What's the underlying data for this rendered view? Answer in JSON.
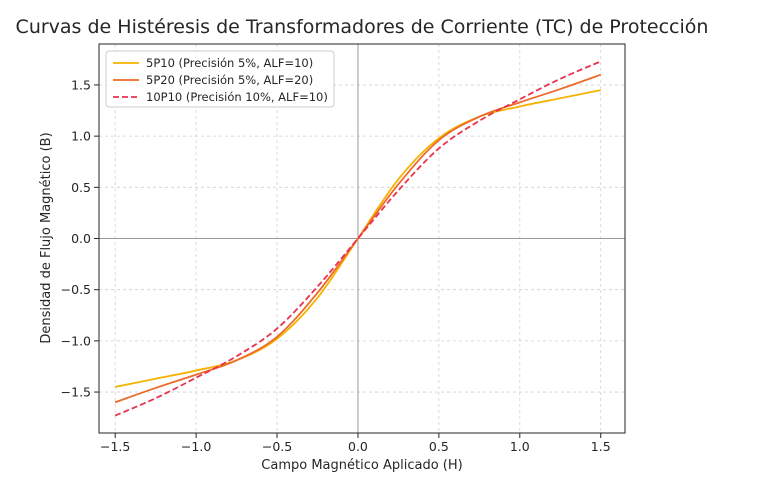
{
  "chart_data": {
    "type": "line",
    "title": "Curvas de Histéresis de Transformadores de Corriente (TC) de Protección",
    "xlabel": "Campo Magnético Aplicado (H)",
    "ylabel": "Densidad de Flujo Magnético (B)",
    "xlim": [
      -1.6,
      1.65
    ],
    "ylim": [
      -1.9,
      1.9
    ],
    "xticks": [
      -1.5,
      -1.0,
      -0.5,
      0.0,
      0.5,
      1.0,
      1.5
    ],
    "xtick_labels": [
      "−1.5",
      "−1.0",
      "−0.5",
      "0.0",
      "0.5",
      "1.0",
      "1.5"
    ],
    "yticks": [
      -1.5,
      -1.0,
      -0.5,
      0.0,
      0.5,
      1.0,
      1.5
    ],
    "ytick_labels": [
      "−1.5",
      "−1.0",
      "−0.5",
      "0.0",
      "0.5",
      "1.0",
      "1.5"
    ],
    "grid": true,
    "legend_position": "top-left",
    "x": [
      -1.5,
      -1.25,
      -1.0,
      -0.75,
      -0.5,
      -0.25,
      0.0,
      0.25,
      0.5,
      0.75,
      1.0,
      1.25,
      1.5
    ],
    "series": [
      {
        "name": "5P10 (Precisión 5%, ALF=10)",
        "color": "#f5b301",
        "dash": "solid",
        "values": [
          -1.45,
          -1.37,
          -1.29,
          -1.19,
          -0.98,
          -0.58,
          0.0,
          0.58,
          0.98,
          1.19,
          1.29,
          1.37,
          1.45
        ]
      },
      {
        "name": "5P20 (Precisión 5%, ALF=20)",
        "color": "#ee6a2a",
        "dash": "solid",
        "values": [
          -1.6,
          -1.46,
          -1.33,
          -1.19,
          -0.96,
          -0.53,
          0.0,
          0.53,
          0.96,
          1.19,
          1.33,
          1.46,
          1.6
        ]
      },
      {
        "name": "10P10 (Precisión 10%, ALF=10)",
        "color": "#e8334d",
        "dash": "dashed",
        "values": [
          -1.73,
          -1.56,
          -1.36,
          -1.15,
          -0.88,
          -0.47,
          0.0,
          0.47,
          0.88,
          1.15,
          1.36,
          1.56,
          1.73
        ]
      }
    ]
  }
}
